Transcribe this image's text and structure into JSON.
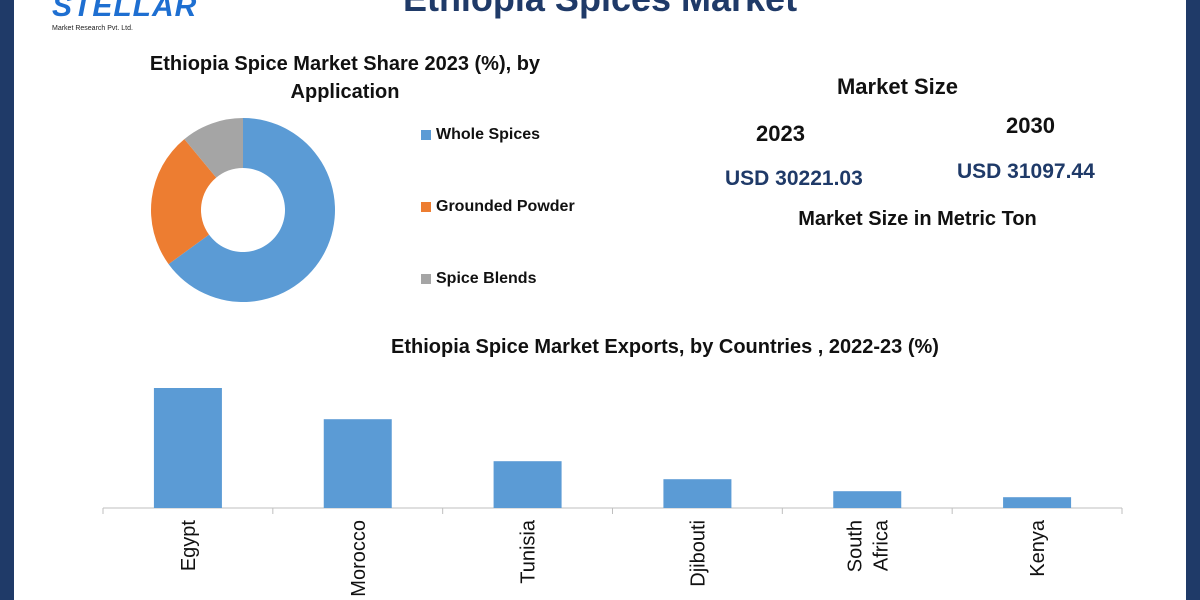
{
  "page": {
    "title": "Ethiopia Spices Market",
    "logo_text": "STELLAR",
    "logo_subtext": "Market Research Pvt. Ltd."
  },
  "colors": {
    "frame": "#1f3a68",
    "whole_spices": "#5b9bd5",
    "grounded_powder": "#ed7d31",
    "spice_blends": "#a5a5a5",
    "bar": "#5b9bd5",
    "usd_text": "#1f3a68"
  },
  "market_size": {
    "title": "Market Size",
    "year_a": "2023",
    "value_a": "USD 30221.03",
    "year_b": "2030",
    "value_b": "USD 31097.44",
    "unit_note": "Market Size in Metric Ton"
  },
  "chart_data": [
    {
      "type": "pie",
      "title": "Ethiopia Spice Market Share 2023 (%), by Application",
      "donut": true,
      "categories": [
        "Whole Spices",
        "Grounded Powder",
        "Spice Blends"
      ],
      "values": [
        65,
        24,
        11
      ],
      "legend": "right"
    },
    {
      "type": "bar",
      "title": "Ethiopia Spice Market Exports, by Countries , 2022-23 (%)",
      "categories": [
        "Egypt",
        "Morocco",
        "Tunisia",
        "Djibouti",
        "South Africa",
        "Kenya"
      ],
      "values": [
        100,
        74,
        39,
        24,
        14,
        9
      ],
      "ylim": [
        0,
        100
      ],
      "grid": false
    }
  ]
}
